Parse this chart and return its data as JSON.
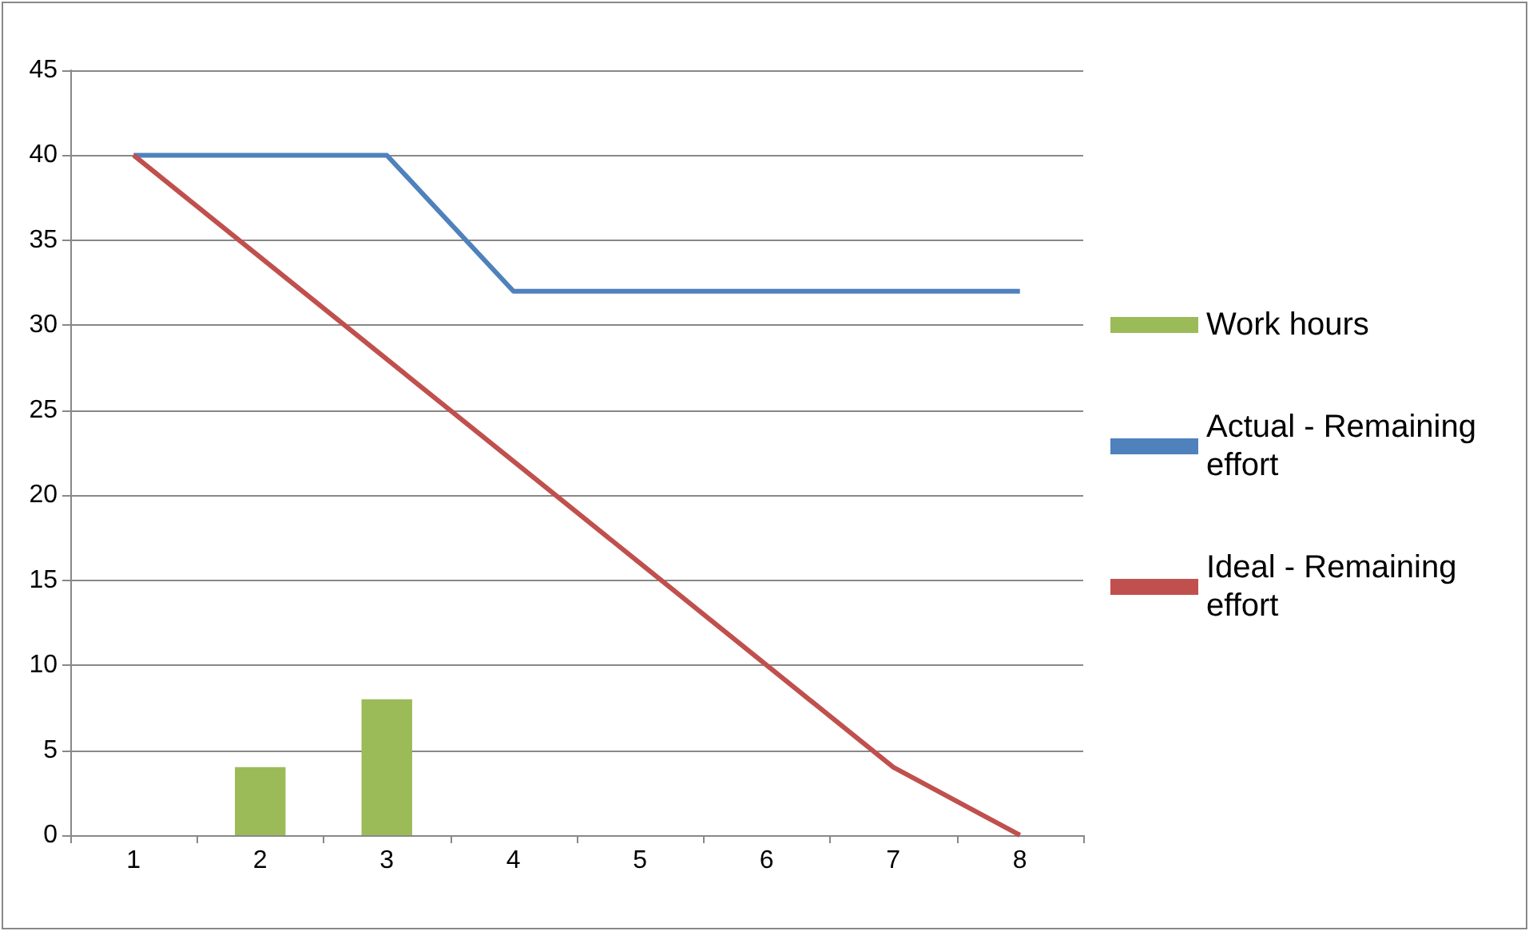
{
  "chart_data": {
    "type": "bar",
    "categories": [
      "1",
      "2",
      "3",
      "4",
      "5",
      "6",
      "7",
      "8"
    ],
    "series": [
      {
        "name": "Work hours",
        "color": "#9bbb59",
        "values": [
          null,
          4,
          8,
          null,
          null,
          null,
          null,
          null
        ]
      },
      {
        "name": "Actual - Remaining effort",
        "type": "line",
        "color": "#4f81bd",
        "values": [
          40,
          40,
          40,
          32,
          32,
          32,
          32,
          32
        ]
      },
      {
        "name": "Ideal - Remaining effort",
        "type": "line",
        "color": "#c0504d",
        "values": [
          40,
          34,
          28,
          22,
          16,
          10,
          4,
          0
        ]
      }
    ],
    "ylim": [
      0,
      45
    ],
    "yticks": [
      0,
      5,
      10,
      15,
      20,
      25,
      30,
      35,
      40,
      45
    ],
    "grid": "y",
    "legend": "right",
    "marker": "none",
    "line_style": "solid"
  }
}
